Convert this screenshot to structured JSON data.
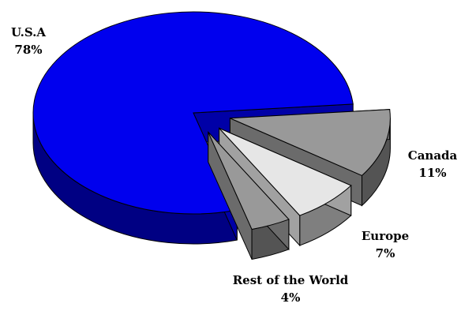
{
  "chart_data": {
    "type": "pie",
    "style": "3d-exploded",
    "title": "",
    "slices": [
      {
        "label": "U.S.A",
        "value": 78,
        "value_label": "78%",
        "color": "#0000ee"
      },
      {
        "label": "Canada",
        "value": 11,
        "value_label": "11%",
        "color": "#999999"
      },
      {
        "label": "Europe",
        "value": 7,
        "value_label": "7%",
        "color": "#e6e6e6"
      },
      {
        "label": "Rest of the World",
        "value": 4,
        "value_label": "4%",
        "color": "#999999"
      }
    ],
    "legend": "none"
  }
}
